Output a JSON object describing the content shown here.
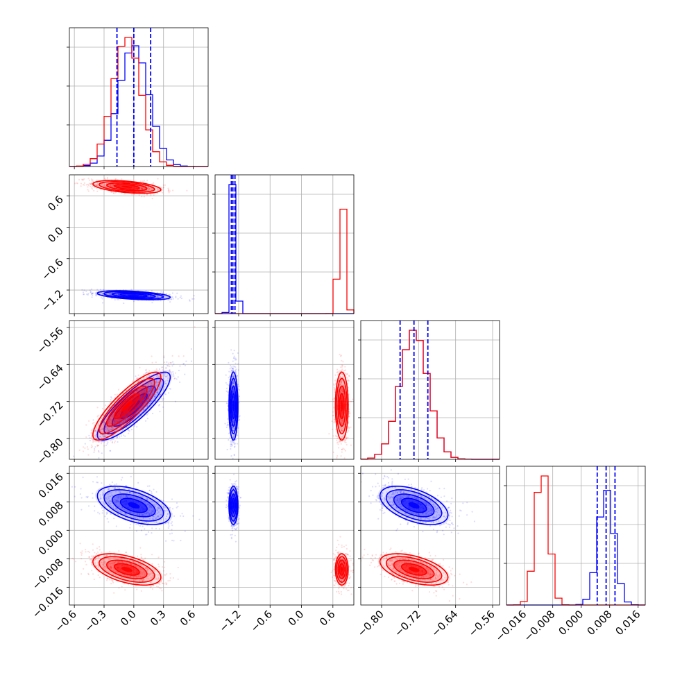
{
  "chart_data": {
    "type": "corner",
    "parameters": 4,
    "grid": true,
    "colors": {
      "blue": "#0000ff",
      "red": "#ff0000"
    },
    "series": [
      {
        "color": "#0000ff",
        "mean": [
          0.0,
          -1.3,
          -0.73,
          0.007
        ],
        "std": [
          0.15,
          0.035,
          0.03,
          0.0022
        ],
        "quantiles_shown": true
      },
      {
        "color": "#ff0000",
        "mean": [
          -0.07,
          0.77,
          -0.73,
          -0.011
        ],
        "std": [
          0.14,
          0.05,
          0.03,
          0.0018
        ],
        "quantiles_shown": false
      }
    ],
    "quantiles": {
      "p0": [
        -0.17,
        0.0,
        0.17
      ],
      "p1": [
        -1.34,
        -1.31,
        -1.27
      ],
      "p2": [
        -0.76,
        -0.73,
        -0.7
      ],
      "p3": [
        0.0045,
        0.007,
        0.0095
      ]
    },
    "correlations": {
      "p0_p1": -0.45,
      "p0_p2": 0.85,
      "p0_p3": -0.5,
      "p1_p2": 0.0,
      "p1_p3": 0.0,
      "p2_p3": -0.5
    },
    "ranges": [
      [
        -0.65,
        0.75
      ],
      [
        -1.65,
        1.0
      ],
      [
        -0.845,
        -0.545
      ],
      [
        -0.021,
        0.018
      ]
    ],
    "axes": {
      "p0": {
        "ticks": [
          -0.6,
          -0.3,
          0.0,
          0.3,
          0.6
        ],
        "labels": [
          "−0.6",
          "−0.3",
          "0.0",
          "0.3",
          "0.6"
        ]
      },
      "p1": {
        "ticks": [
          -1.2,
          -0.6,
          0.0,
          0.6
        ],
        "labels": [
          "−1.2",
          "−0.6",
          "0.0",
          "0.6"
        ]
      },
      "p2": {
        "ticks": [
          -0.8,
          -0.72,
          -0.64,
          -0.56
        ],
        "labels": [
          "−0.80",
          "−0.72",
          "−0.64",
          "−0.56"
        ]
      },
      "p3": {
        "ticks": [
          -0.016,
          -0.008,
          0.0,
          0.008,
          0.016
        ],
        "labels": [
          "−0.016",
          "−0.008",
          "0.000",
          "0.008",
          "0.016"
        ]
      }
    }
  }
}
